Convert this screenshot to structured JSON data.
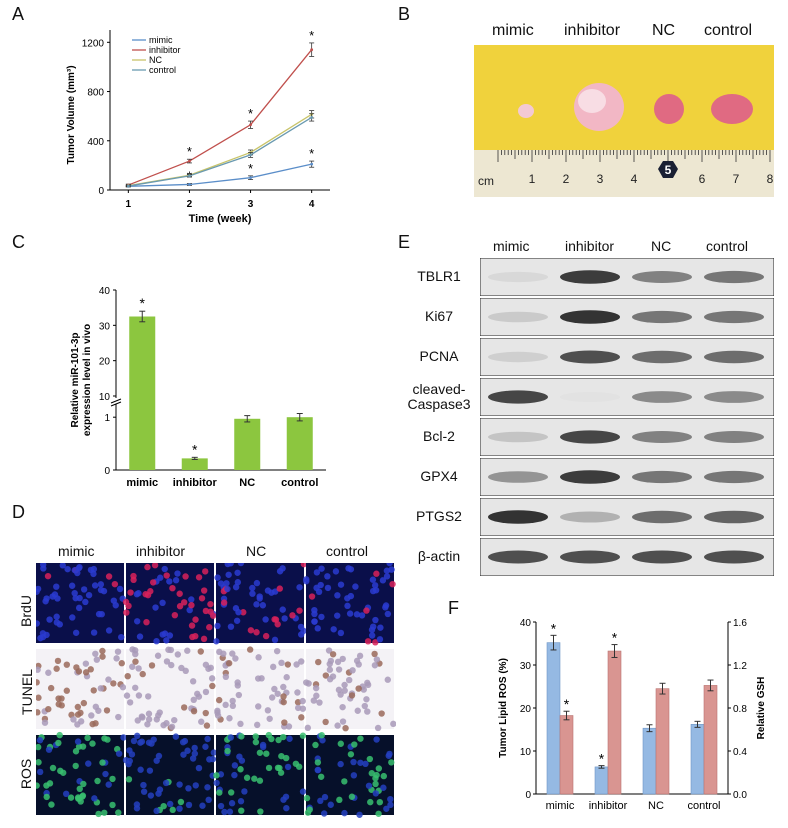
{
  "panel_labels": {
    "a": "A",
    "b": "B",
    "c": "C",
    "d": "D",
    "e": "E",
    "f": "F"
  },
  "groups": [
    "mimic",
    "inhibitor",
    "NC",
    "control"
  ],
  "colors": {
    "mimic": "#5b8ec9",
    "inhibitor": "#c0504d",
    "nc": "#c8c46a",
    "control": "#6a9ab0",
    "bar_green": "#8cc63f",
    "bar_blue": "#95b9e3",
    "bar_red": "#d99591",
    "yellow_bg": "#f0d23c"
  },
  "panel_b": {
    "ruler_labels": [
      "cm",
      "1",
      "2",
      "3",
      "4",
      "5",
      "6",
      "7",
      "8"
    ]
  },
  "panel_d": {
    "rows": [
      "BrdU",
      "TUNEL",
      "ROS"
    ]
  },
  "panel_e": {
    "proteins": [
      {
        "name": "TBLR1",
        "intensity": [
          0.05,
          0.85,
          0.5,
          0.55
        ]
      },
      {
        "name": "Ki67",
        "intensity": [
          0.12,
          0.9,
          0.55,
          0.55
        ]
      },
      {
        "name": "PCNA",
        "intensity": [
          0.1,
          0.75,
          0.6,
          0.6
        ]
      },
      {
        "name": "cleaved-\nCaspase3",
        "intensity": [
          0.8,
          0.0,
          0.45,
          0.45
        ]
      },
      {
        "name": "Bcl-2",
        "intensity": [
          0.15,
          0.8,
          0.5,
          0.5
        ]
      },
      {
        "name": "GPX4",
        "intensity": [
          0.4,
          0.85,
          0.55,
          0.55
        ]
      },
      {
        "name": "PTGS2",
        "intensity": [
          0.9,
          0.25,
          0.6,
          0.65
        ]
      },
      {
        "name": "β-actin",
        "intensity": [
          0.75,
          0.75,
          0.75,
          0.75
        ]
      }
    ]
  },
  "chart_data": [
    {
      "id": "A",
      "type": "line",
      "xlabel": "Time (week)",
      "ylabel": "Tumor Volume (mm³)",
      "x": [
        1,
        2,
        3,
        4
      ],
      "xlim": [
        0.7,
        4.3
      ],
      "ylim": [
        0,
        1300
      ],
      "yticks": [
        0,
        400,
        800,
        1200
      ],
      "series": [
        {
          "name": "mimic",
          "values": [
            30,
            45,
            100,
            210
          ],
          "err": [
            5,
            8,
            15,
            25
          ],
          "stars": [
            false,
            true,
            true,
            true
          ]
        },
        {
          "name": "inhibitor",
          "values": [
            40,
            235,
            530,
            1140
          ],
          "err": [
            8,
            15,
            30,
            55
          ],
          "stars": [
            false,
            true,
            true,
            true
          ]
        },
        {
          "name": "NC",
          "values": [
            35,
            120,
            305,
            615
          ],
          "err": [
            6,
            10,
            20,
            30
          ],
          "stars": [
            false,
            false,
            false,
            false
          ]
        },
        {
          "name": "control",
          "values": [
            32,
            115,
            285,
            590
          ],
          "err": [
            6,
            10,
            20,
            30
          ],
          "stars": [
            false,
            false,
            false,
            false
          ]
        }
      ]
    },
    {
      "id": "C",
      "type": "bar",
      "categories": [
        "mimic",
        "inhibitor",
        "NC",
        "control"
      ],
      "ylabel": "Relative miR-101-3p\nexpression level in vivo",
      "values": [
        32.5,
        0.22,
        0.97,
        1.0
      ],
      "err": [
        1.5,
        0.02,
        0.06,
        0.07
      ],
      "stars": [
        true,
        true,
        false,
        false
      ],
      "axis_break": true,
      "lower_ticks": [
        0,
        1
      ],
      "upper_ticks": [
        10,
        20,
        30,
        40
      ]
    },
    {
      "id": "F",
      "type": "bar",
      "categories": [
        "mimic",
        "inhibitor",
        "NC",
        "control"
      ],
      "ylabel_left": "Tumor Lipid ROS (%)",
      "ylabel_right": "Relative GSH",
      "ylim_left": [
        0,
        40
      ],
      "ylim_right": [
        0,
        1.6
      ],
      "yticks_left": [
        0,
        10,
        20,
        30,
        40
      ],
      "yticks_right": [
        "0.0",
        "0.4",
        "0.8",
        "1.2",
        "1.6"
      ],
      "series": [
        {
          "name": "Tumor Lipid ROS (%)",
          "values": [
            35.2,
            6.3,
            15.3,
            16.2
          ],
          "err": [
            1.7,
            0.3,
            0.8,
            0.7
          ],
          "stars": [
            true,
            true,
            false,
            false
          ],
          "axis": "left"
        },
        {
          "name": "Relative GSH",
          "values": [
            0.73,
            1.33,
            0.98,
            1.01
          ],
          "err": [
            0.04,
            0.06,
            0.05,
            0.05
          ],
          "stars": [
            true,
            true,
            false,
            false
          ],
          "axis": "right"
        }
      ]
    }
  ]
}
